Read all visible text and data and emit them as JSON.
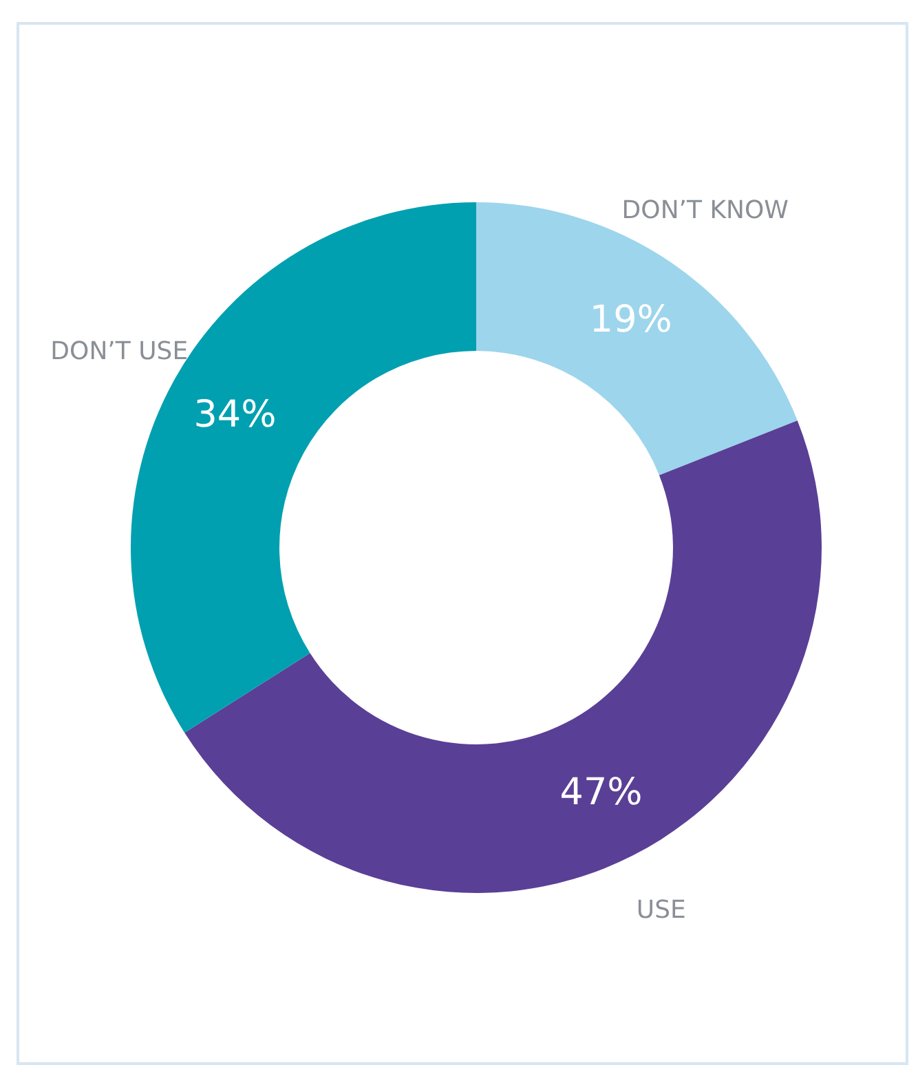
{
  "chart_data": {
    "type": "donut",
    "categories": [
      "DON’T KNOW",
      "USE",
      "DON’T USE"
    ],
    "values": [
      19,
      47,
      34
    ],
    "value_labels": [
      "19%",
      "47%",
      "34%"
    ],
    "colors": [
      "#9dd5ec",
      "#5a3f96",
      "#00a0b0"
    ],
    "legend": false
  }
}
